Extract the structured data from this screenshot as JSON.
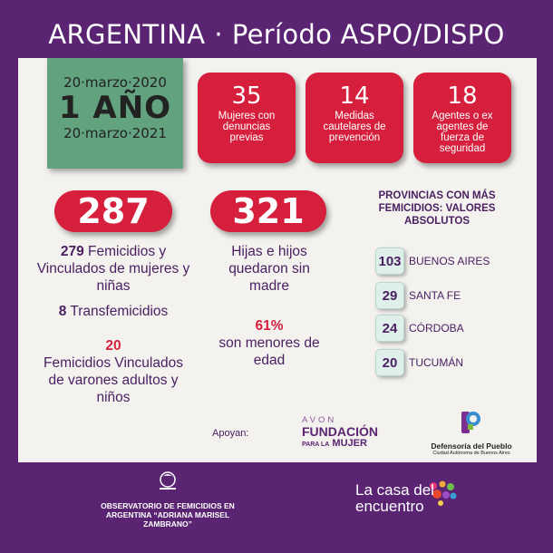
{
  "header": {
    "country": "ARGENTINA",
    "separator": "·",
    "period": "Período ASPO/DISPO"
  },
  "period_box": {
    "start": "20·marzo·2020",
    "title": "1 AÑO",
    "end": "20·marzo·2021"
  },
  "stats_top": [
    {
      "number": "35",
      "label": "Mujeres con denuncias previas"
    },
    {
      "number": "14",
      "label": "Medidas cautelares de prevención"
    },
    {
      "number": "18",
      "label": "Agentes o ex agentes de fuerza de seguridad"
    }
  ],
  "femicidios": {
    "total": "287",
    "vinculados_num": "279",
    "vinculados_label": "Femicidios y Vinculados de mujeres y niñas",
    "trans_num": "8",
    "trans_label": "Transfemicidios",
    "varones_num": "20",
    "varones_label": "Femicidios Vinculados de varones adultos y niños"
  },
  "hijos": {
    "total": "321",
    "label": "Hijas e hijos quedaron sin madre",
    "pct": "61%",
    "pct_label": "son menores de edad"
  },
  "provincias": {
    "title": "PROVINCIAS CON MÁS FEMICIDIOS: VALORES ABSOLUTOS",
    "items": [
      {
        "value": "103",
        "name": "BUENOS AIRES"
      },
      {
        "value": "29",
        "name": "SANTA FE"
      },
      {
        "value": "24",
        "name": "CÓRDOBA"
      },
      {
        "value": "20",
        "name": "TUCUMÁN"
      }
    ]
  },
  "sponsors": {
    "apoyan": "Apoyan:",
    "avon": "AVON",
    "fundacion": "FUNDACIÓN",
    "para_la": "PARA LA",
    "mujer": "MUJER",
    "defensoria": "Defensoría del Pueblo",
    "defensoria_sub": "Ciudad Autónoma de Buenos Aires"
  },
  "footer": {
    "observatorio": "OBSERVATORIO DE FEMICIDIOS EN ARGENTINA “ADRIANA MARISEL ZAMBRANO”",
    "casa": "La casa del encuentro"
  },
  "colors": {
    "purple": "#5a2473",
    "red": "#d61f3c",
    "green": "#63a27f",
    "card": "#f4f2ee"
  }
}
